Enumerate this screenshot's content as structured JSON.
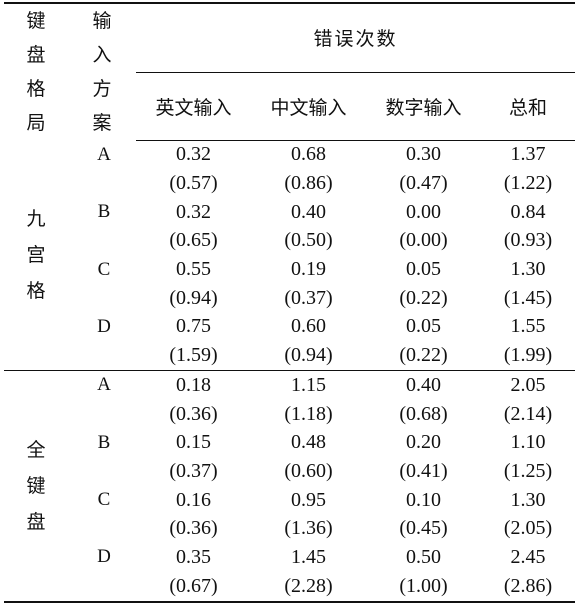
{
  "table": {
    "header": {
      "layout_label": "键盘格局",
      "scheme_label": "输入方案",
      "group_label": "错误次数",
      "columns": [
        "英文输入",
        "中文输入",
        "数字输入",
        "总和"
      ]
    },
    "groups": [
      {
        "layout": "九宫格",
        "schemes": [
          {
            "scheme": "A",
            "means": [
              "0.32",
              "0.68",
              "0.30",
              "1.37"
            ],
            "sds": [
              "(0.57)",
              "(0.86)",
              "(0.47)",
              "(1.22)"
            ]
          },
          {
            "scheme": "B",
            "means": [
              "0.32",
              "0.40",
              "0.00",
              "0.84"
            ],
            "sds": [
              "(0.65)",
              "(0.50)",
              "(0.00)",
              "(0.93)"
            ]
          },
          {
            "scheme": "C",
            "means": [
              "0.55",
              "0.19",
              "0.05",
              "1.30"
            ],
            "sds": [
              "(0.94)",
              "(0.37)",
              "(0.22)",
              "(1.45)"
            ]
          },
          {
            "scheme": "D",
            "means": [
              "0.75",
              "0.60",
              "0.05",
              "1.55"
            ],
            "sds": [
              "(1.59)",
              "(0.94)",
              "(0.22)",
              "(1.99)"
            ]
          }
        ]
      },
      {
        "layout": "全键盘",
        "schemes": [
          {
            "scheme": "A",
            "means": [
              "0.18",
              "1.15",
              "0.40",
              "2.05"
            ],
            "sds": [
              "(0.36)",
              "(1.18)",
              "(0.68)",
              "(2.14)"
            ]
          },
          {
            "scheme": "B",
            "means": [
              "0.15",
              "0.48",
              "0.20",
              "1.10"
            ],
            "sds": [
              "(0.37)",
              "(0.60)",
              "(0.41)",
              "(1.25)"
            ]
          },
          {
            "scheme": "C",
            "means": [
              "0.16",
              "0.95",
              "0.10",
              "1.30"
            ],
            "sds": [
              "(0.36)",
              "(1.36)",
              "(0.45)",
              "(2.05)"
            ]
          },
          {
            "scheme": "D",
            "means": [
              "0.35",
              "1.45",
              "0.50",
              "2.45"
            ],
            "sds": [
              "(0.67)",
              "(2.28)",
              "(1.00)",
              "(2.86)"
            ]
          }
        ]
      }
    ]
  }
}
